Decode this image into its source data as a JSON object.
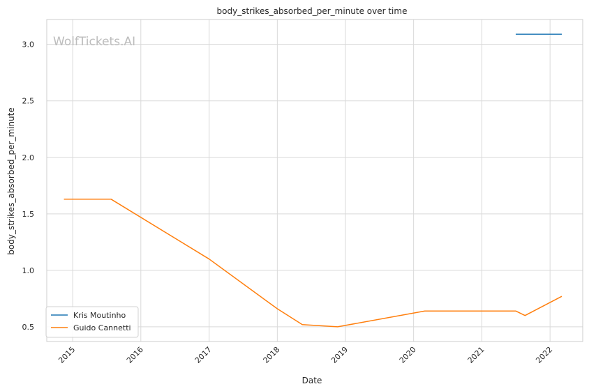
{
  "chart_data": {
    "type": "line",
    "title": "body_strikes_absorbed_per_minute over time",
    "xlabel": "Date",
    "ylabel": "body_strikes_absorbed_per_minute",
    "watermark": "WolfTickets.AI",
    "xlim": [
      "2014-08-15",
      "2022-06-25"
    ],
    "ylim": [
      0.37,
      3.22
    ],
    "x_ticks": [
      "2015",
      "2016",
      "2017",
      "2018",
      "2019",
      "2020",
      "2021",
      "2022"
    ],
    "y_ticks": [
      "0.5",
      "1.0",
      "1.5",
      "2.0",
      "2.5",
      "3.0"
    ],
    "grid": true,
    "legend_position": "lower-left",
    "series": [
      {
        "name": "Kris Moutinho",
        "color": "#1f77b4",
        "x": [
          "2021-07-01",
          "2022-03-05"
        ],
        "y": [
          3.09,
          3.09
        ]
      },
      {
        "name": "Guido Cannetti",
        "color": "#ff7f0e",
        "x": [
          "2014-11-15",
          "2015-07-25",
          "2017-01-01",
          "2018-01-01",
          "2018-05-15",
          "2018-11-20",
          "2020-03-01",
          "2021-07-01",
          "2021-08-20",
          "2022-03-05"
        ],
        "y": [
          1.63,
          1.63,
          1.1,
          0.66,
          0.52,
          0.5,
          0.64,
          0.64,
          0.6,
          0.77
        ]
      }
    ]
  }
}
